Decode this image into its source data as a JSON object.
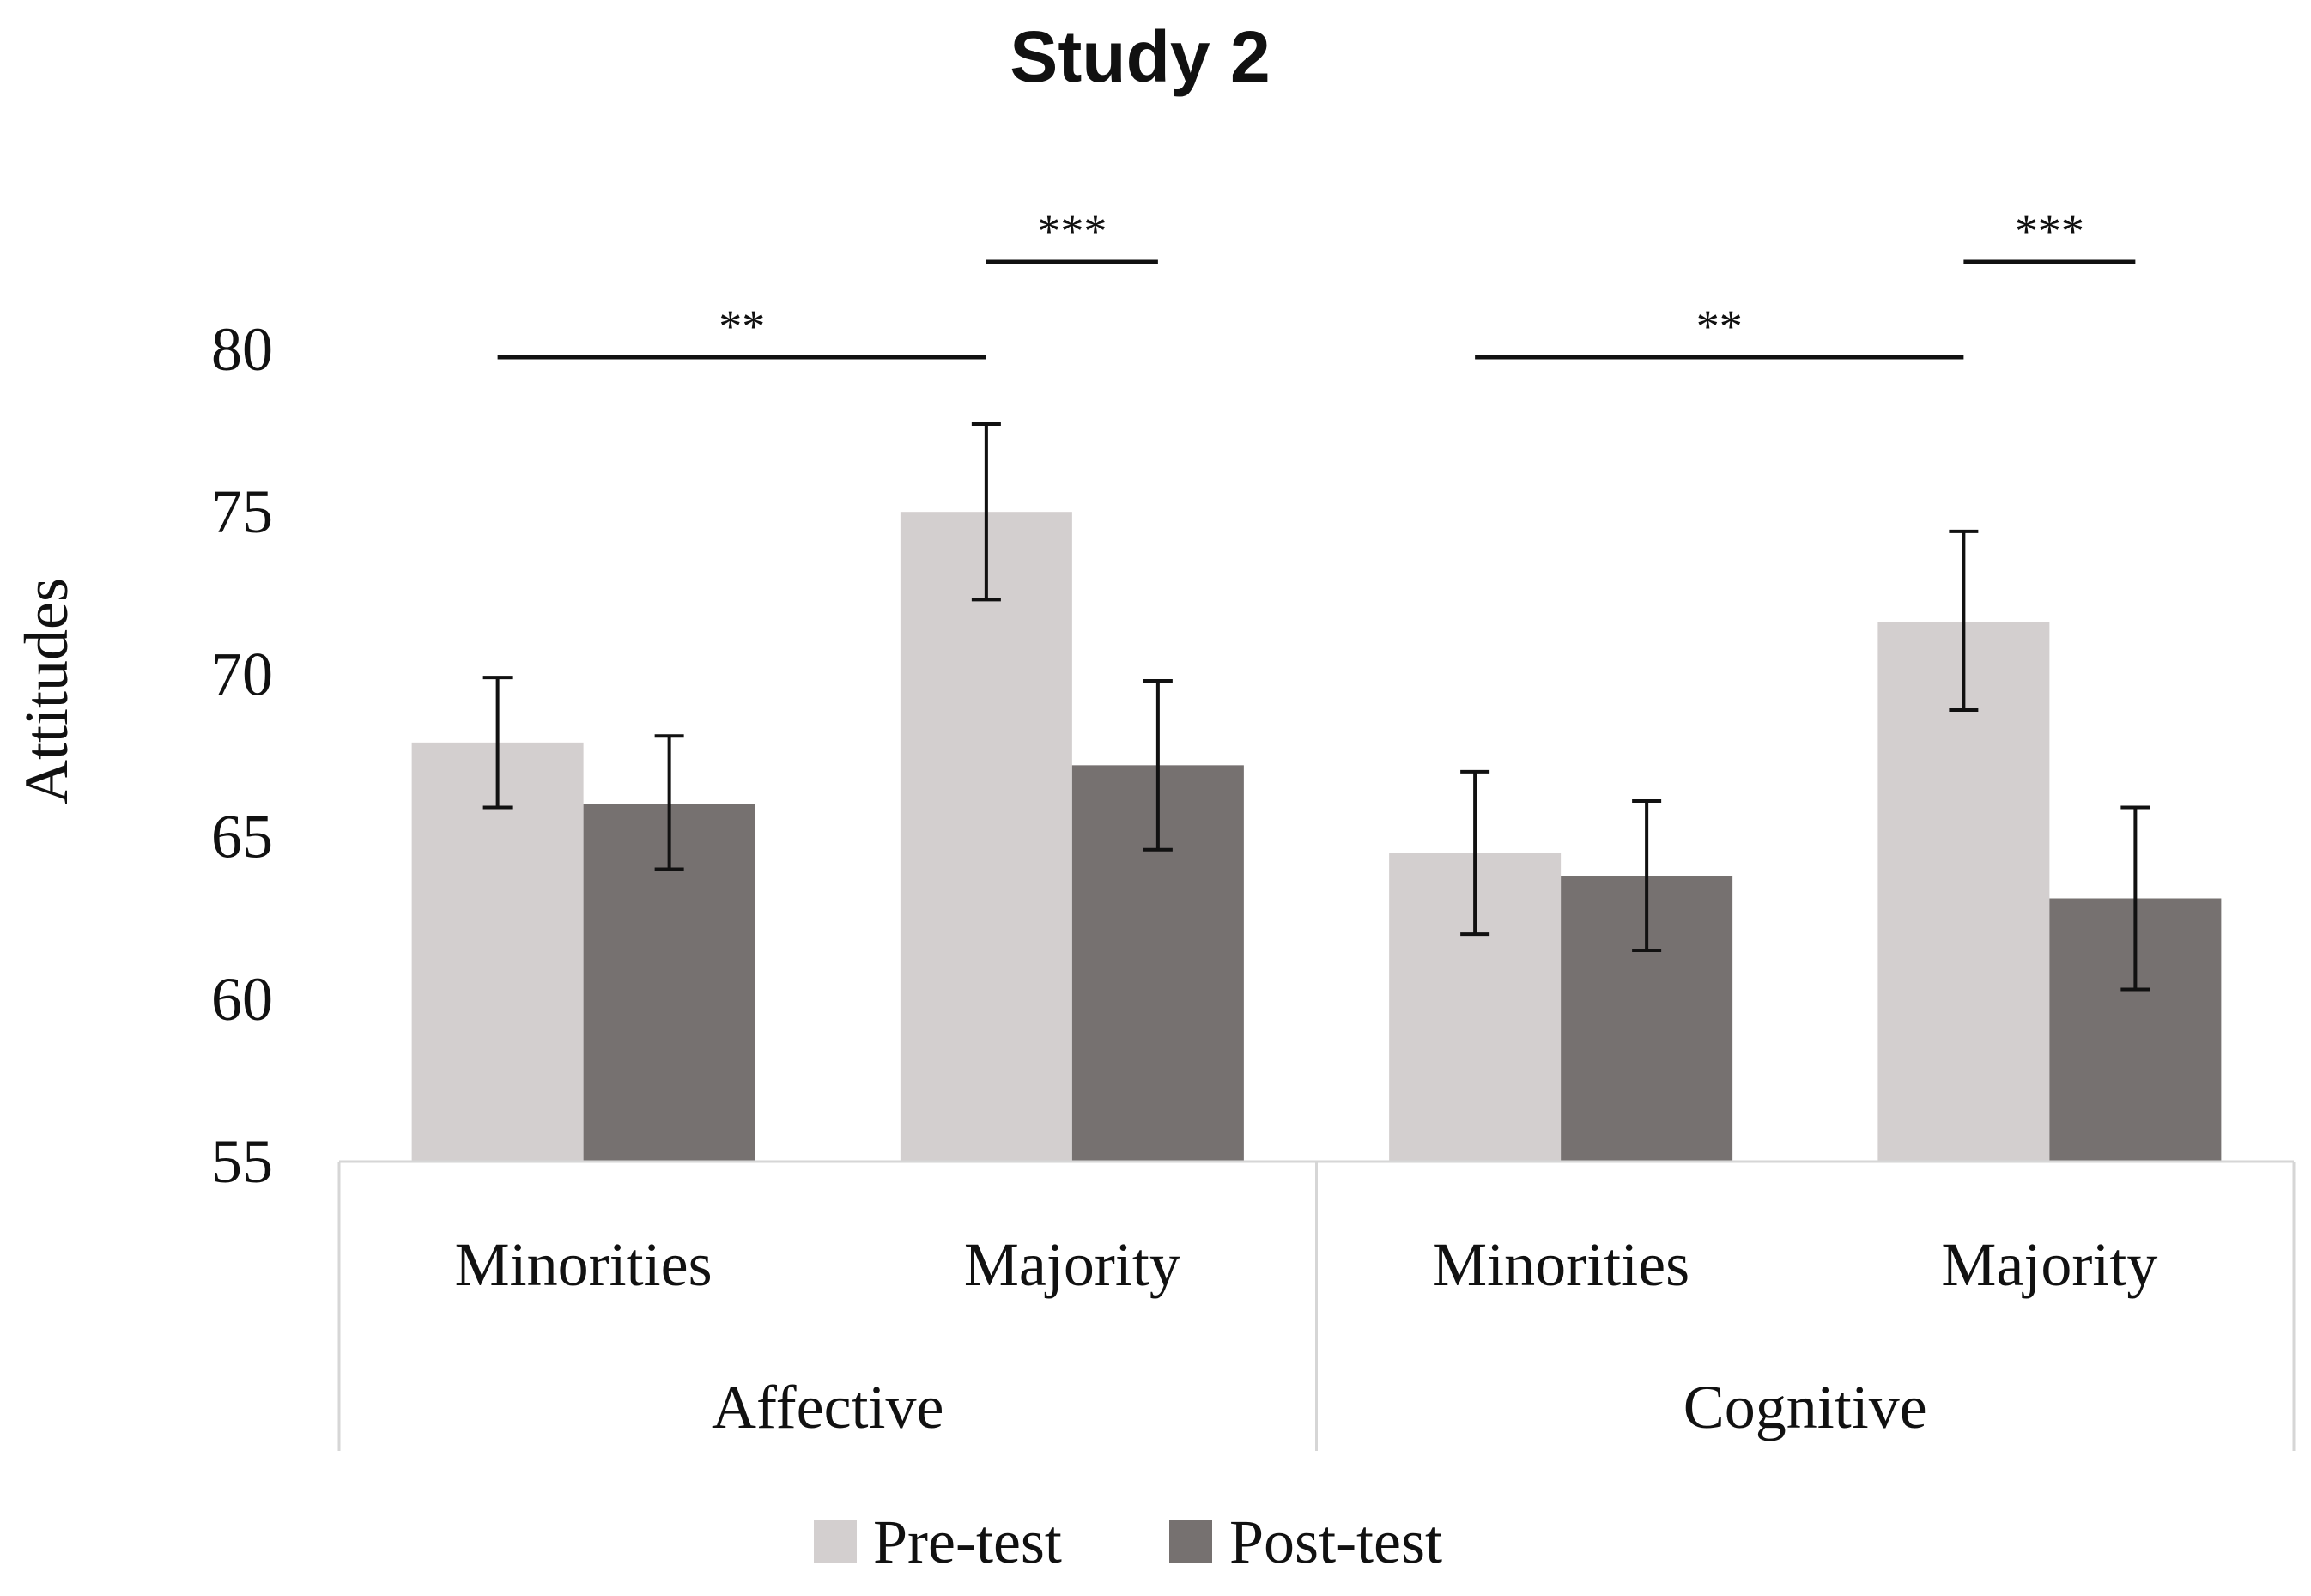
{
  "chart_data": {
    "type": "bar",
    "title": "Study 2",
    "ylabel": "Attitudes",
    "xlabel": "",
    "ylim": [
      55,
      80
    ],
    "yticks": [
      55,
      60,
      65,
      70,
      75,
      80
    ],
    "grid": false,
    "legend_position": "bottom",
    "categories": [
      {
        "group": "Affective",
        "label": "Minorities"
      },
      {
        "group": "Affective",
        "label": "Majority"
      },
      {
        "group": "Cognitive",
        "label": "Minorities"
      },
      {
        "group": "Cognitive",
        "label": "Majority"
      }
    ],
    "groups": [
      "Affective",
      "Cognitive"
    ],
    "series": [
      {
        "name": "Pre-test",
        "color": "#d3cfcf",
        "values": [
          67.9,
          75.0,
          64.5,
          71.6
        ],
        "error_low": [
          65.9,
          72.3,
          62.0,
          68.9
        ],
        "error_high": [
          69.9,
          77.7,
          67.0,
          74.4
        ]
      },
      {
        "name": "Post-test",
        "color": "#767170",
        "values": [
          66.0,
          67.2,
          63.8,
          63.1
        ],
        "error_low": [
          64.0,
          64.6,
          61.5,
          60.3
        ],
        "error_high": [
          68.1,
          69.8,
          66.1,
          65.9
        ]
      }
    ],
    "annotations": [
      {
        "label": "**",
        "from": {
          "category": 0,
          "series": 0
        },
        "to": {
          "category": 1,
          "series": 0
        },
        "level": 1
      },
      {
        "label": "***",
        "from": {
          "category": 1,
          "series": 0
        },
        "to": {
          "category": 1,
          "series": 1
        },
        "level": 2
      },
      {
        "label": "**",
        "from": {
          "category": 2,
          "series": 0
        },
        "to": {
          "category": 3,
          "series": 0
        },
        "level": 1
      },
      {
        "label": "***",
        "from": {
          "category": 3,
          "series": 0
        },
        "to": {
          "category": 3,
          "series": 1
        },
        "level": 2
      }
    ]
  }
}
